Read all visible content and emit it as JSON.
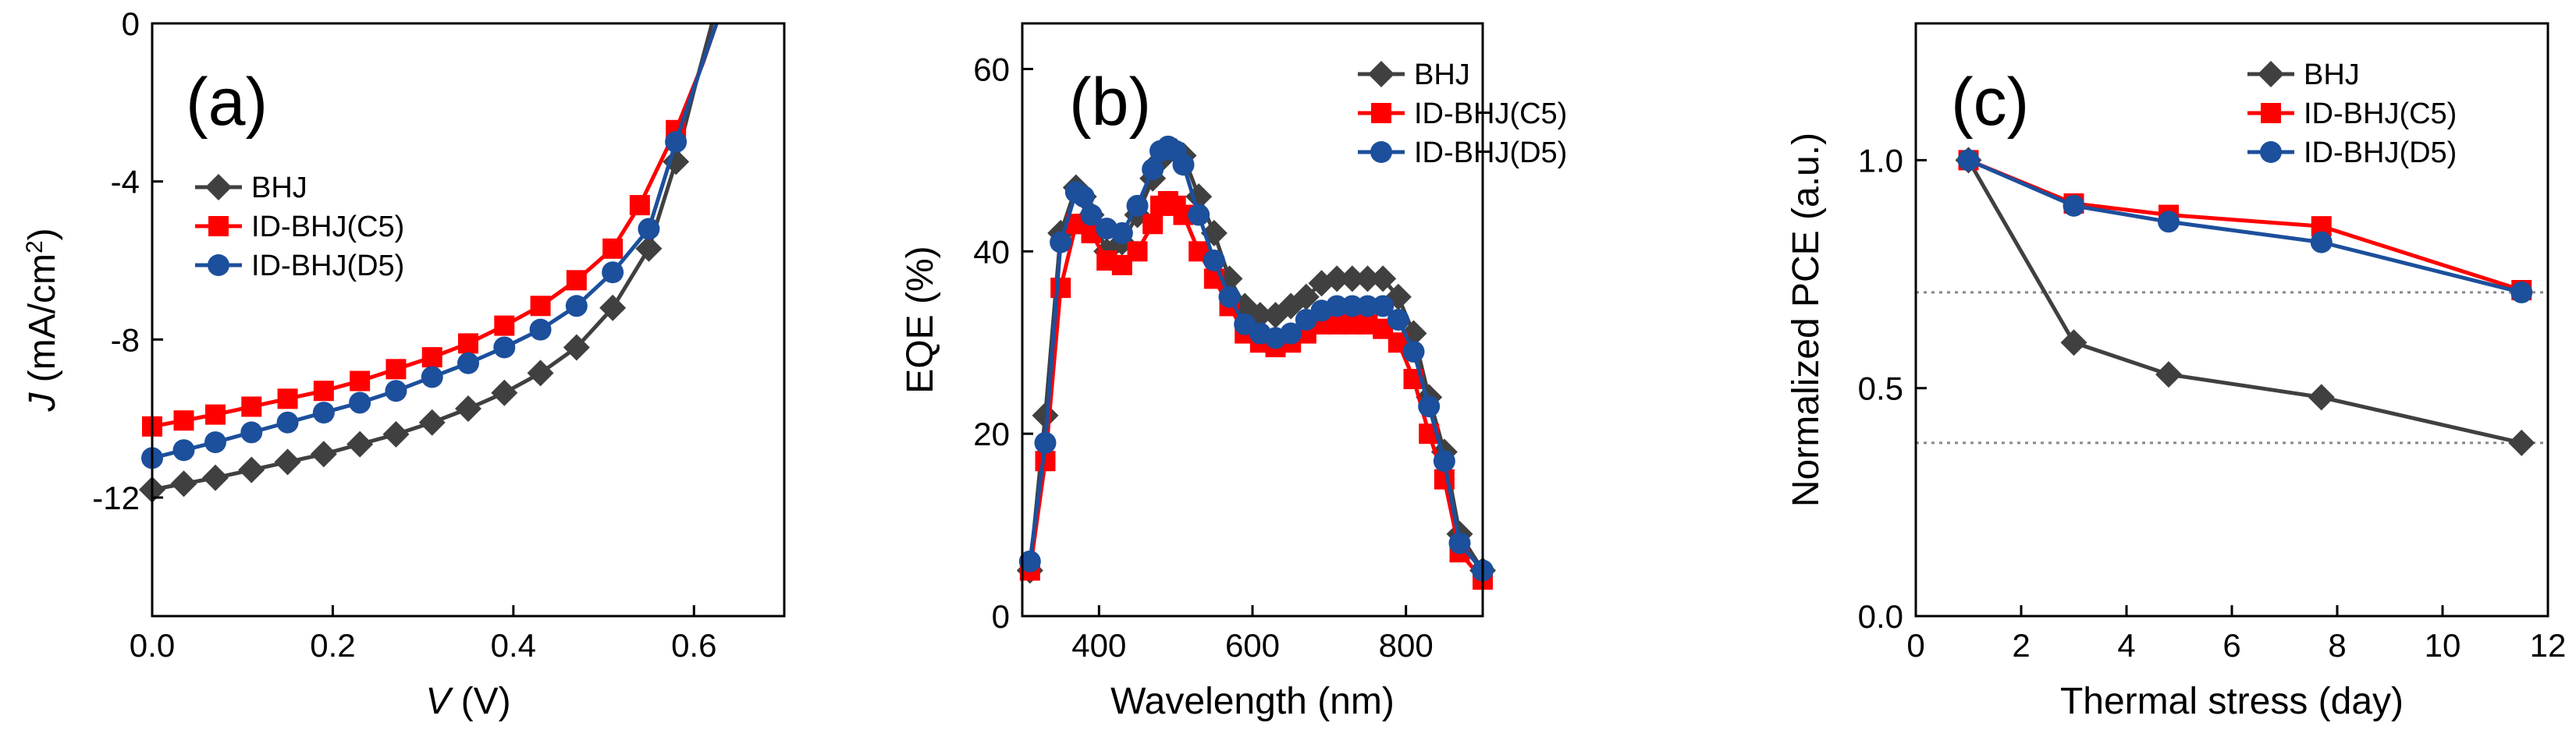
{
  "figure": {
    "colors": {
      "BHJ": "#404040",
      "ID-BHJ(C5)": "#ff0000",
      "ID-BHJ(D5)": "#1c4f9c",
      "ref_line": "#888888"
    }
  },
  "chart_data": [
    {
      "type": "line",
      "panel_label": "(a)",
      "title": "",
      "xlabel": {
        "symbol": "V",
        "unit": " (V)"
      },
      "ylabel": {
        "symbol": "J",
        "unit_prefix": " (mA/cm",
        "unit_sup": "2",
        "unit_suffix": ")"
      },
      "xlim": [
        0.0,
        0.7
      ],
      "ylim": [
        -15,
        0
      ],
      "xticks": [
        0.0,
        0.2,
        0.4,
        0.6
      ],
      "xtick_labels": [
        "0.0",
        "0.2",
        "0.4",
        "0.6"
      ],
      "yticks": [
        0,
        -4,
        -8,
        -12
      ],
      "ytick_labels": [
        "0",
        "-4",
        "-8",
        "-12"
      ],
      "legend": {
        "position": "left-center",
        "entries": [
          "BHJ",
          "ID-BHJ(C5)",
          "ID-BHJ(D5)"
        ]
      },
      "series": [
        {
          "name": "BHJ",
          "marker": "diamond",
          "color": "#404040",
          "x": [
            0.0,
            0.035,
            0.07,
            0.11,
            0.15,
            0.19,
            0.23,
            0.27,
            0.31,
            0.35,
            0.39,
            0.43,
            0.47,
            0.51,
            0.55,
            0.58,
            0.6,
            0.62
          ],
          "y": [
            -11.8,
            -11.65,
            -11.5,
            -11.3,
            -11.1,
            -10.9,
            -10.65,
            -10.4,
            -10.1,
            -9.75,
            -9.35,
            -8.85,
            -8.2,
            -7.2,
            -5.7,
            -3.5,
            -1.7,
            0.0
          ],
          "marker_x": [
            0.0,
            0.035,
            0.07,
            0.11,
            0.15,
            0.19,
            0.23,
            0.27,
            0.31,
            0.35,
            0.39,
            0.43,
            0.47,
            0.51,
            0.55,
            0.58
          ]
        },
        {
          "name": "ID-BHJ(C5)",
          "marker": "square",
          "color": "#ff0000",
          "x": [
            0.0,
            0.035,
            0.07,
            0.11,
            0.15,
            0.19,
            0.23,
            0.27,
            0.31,
            0.35,
            0.39,
            0.43,
            0.47,
            0.51,
            0.54,
            0.58,
            0.61,
            0.625
          ],
          "y": [
            -10.2,
            -10.05,
            -9.9,
            -9.7,
            -9.5,
            -9.3,
            -9.05,
            -8.75,
            -8.45,
            -8.1,
            -7.65,
            -7.15,
            -6.5,
            -5.7,
            -4.6,
            -2.7,
            -1.0,
            0.0
          ],
          "marker_x": [
            0.0,
            0.035,
            0.07,
            0.11,
            0.15,
            0.19,
            0.23,
            0.27,
            0.31,
            0.35,
            0.39,
            0.43,
            0.47,
            0.51,
            0.54,
            0.58
          ]
        },
        {
          "name": "ID-BHJ(D5)",
          "marker": "circle",
          "color": "#1c4f9c",
          "x": [
            0.0,
            0.035,
            0.07,
            0.11,
            0.15,
            0.19,
            0.23,
            0.27,
            0.31,
            0.35,
            0.39,
            0.43,
            0.47,
            0.51,
            0.55,
            0.58,
            0.605,
            0.625
          ],
          "y": [
            -11.0,
            -10.8,
            -10.6,
            -10.35,
            -10.1,
            -9.85,
            -9.6,
            -9.3,
            -8.95,
            -8.6,
            -8.2,
            -7.75,
            -7.15,
            -6.3,
            -5.2,
            -3.0,
            -1.3,
            0.0
          ],
          "marker_x": [
            0.0,
            0.035,
            0.07,
            0.11,
            0.15,
            0.19,
            0.23,
            0.27,
            0.31,
            0.35,
            0.39,
            0.43,
            0.47,
            0.51,
            0.55,
            0.58
          ]
        }
      ]
    },
    {
      "type": "line",
      "panel_label": "(b)",
      "title": "",
      "xlabel": "Wavelength (nm)",
      "ylabel": "EQE (%)",
      "xlim": [
        300,
        900
      ],
      "ylim": [
        0,
        65
      ],
      "xticks": [
        400,
        600,
        800
      ],
      "xtick_labels": [
        "400",
        "600",
        "800"
      ],
      "yticks": [
        0,
        20,
        40,
        60
      ],
      "ytick_labels": [
        "0",
        "20",
        "40",
        "60"
      ],
      "legend": {
        "position": "top-right",
        "entries": [
          "BHJ",
          "ID-BHJ(C5)",
          "ID-BHJ(D5)"
        ]
      },
      "series": [
        {
          "name": "BHJ",
          "marker": "diamond",
          "color": "#404040",
          "x": [
            310,
            330,
            350,
            370,
            380,
            390,
            410,
            430,
            450,
            470,
            480,
            490,
            500,
            510,
            530,
            550,
            570,
            590,
            610,
            630,
            650,
            670,
            690,
            710,
            730,
            750,
            770,
            790,
            810,
            830,
            850,
            870,
            900
          ],
          "y": [
            5,
            22,
            42,
            47,
            46,
            44,
            40,
            41,
            44,
            48,
            50,
            51,
            51,
            50.5,
            46,
            42,
            37,
            34,
            33,
            33,
            34,
            35,
            36.5,
            37,
            37,
            37,
            37,
            35,
            31,
            24,
            18,
            9,
            5
          ]
        },
        {
          "name": "ID-BHJ(C5)",
          "marker": "square",
          "color": "#ff0000",
          "x": [
            310,
            330,
            350,
            370,
            380,
            390,
            410,
            430,
            450,
            470,
            480,
            490,
            500,
            510,
            530,
            550,
            570,
            590,
            610,
            630,
            650,
            670,
            690,
            710,
            730,
            750,
            770,
            790,
            810,
            830,
            850,
            870,
            900
          ],
          "y": [
            5,
            17,
            36,
            43,
            43,
            42,
            39,
            38.5,
            40,
            43,
            45,
            45.5,
            45,
            44,
            40,
            37,
            34,
            31,
            30,
            29.5,
            30,
            31,
            32,
            32,
            32,
            32,
            31.5,
            30,
            26,
            20,
            15,
            7,
            4
          ]
        },
        {
          "name": "ID-BHJ(D5)",
          "marker": "circle",
          "color": "#1c4f9c",
          "x": [
            310,
            330,
            350,
            370,
            380,
            390,
            410,
            430,
            450,
            470,
            480,
            490,
            500,
            510,
            530,
            550,
            570,
            590,
            610,
            630,
            650,
            670,
            690,
            710,
            730,
            750,
            770,
            790,
            810,
            830,
            850,
            870,
            900
          ],
          "y": [
            6,
            19,
            41,
            46.5,
            46,
            44,
            42.5,
            42,
            45,
            49,
            51,
            51.5,
            51,
            49.5,
            44,
            39,
            35,
            32,
            31,
            30.5,
            31,
            32.5,
            33.5,
            34,
            34,
            34,
            34,
            32.5,
            29,
            23,
            17,
            8,
            5
          ]
        }
      ]
    },
    {
      "type": "line",
      "panel_label": "(c)",
      "title": "",
      "xlabel": "Thermal stress (day)",
      "ylabel": "Normalized PCE (a.u.)",
      "xlim": [
        0,
        12
      ],
      "ylim": [
        0.0,
        1.3
      ],
      "xticks": [
        0,
        2,
        4,
        6,
        8,
        10,
        12
      ],
      "xtick_labels": [
        "0",
        "2",
        "4",
        "6",
        "8",
        "10",
        "12"
      ],
      "yticks": [
        0.0,
        0.5,
        1.0
      ],
      "ytick_labels": [
        "0.0",
        "0.5",
        "1.0"
      ],
      "reference_lines": [
        0.71,
        0.38
      ],
      "legend": {
        "position": "top-right",
        "entries": [
          "BHJ",
          "ID-BHJ(C5)",
          "ID-BHJ(D5)"
        ]
      },
      "series": [
        {
          "name": "BHJ",
          "marker": "diamond",
          "color": "#404040",
          "x": [
            1,
            3,
            4.8,
            7.7,
            11.5
          ],
          "y": [
            1.0,
            0.6,
            0.53,
            0.48,
            0.38
          ]
        },
        {
          "name": "ID-BHJ(C5)",
          "marker": "square",
          "color": "#ff0000",
          "x": [
            1,
            3,
            4.8,
            7.7,
            11.5
          ],
          "y": [
            1.0,
            0.905,
            0.88,
            0.855,
            0.715
          ]
        },
        {
          "name": "ID-BHJ(D5)",
          "marker": "circle",
          "color": "#1c4f9c",
          "x": [
            1,
            3,
            4.8,
            7.7,
            11.5
          ],
          "y": [
            1.0,
            0.9,
            0.865,
            0.82,
            0.71
          ]
        }
      ]
    }
  ]
}
